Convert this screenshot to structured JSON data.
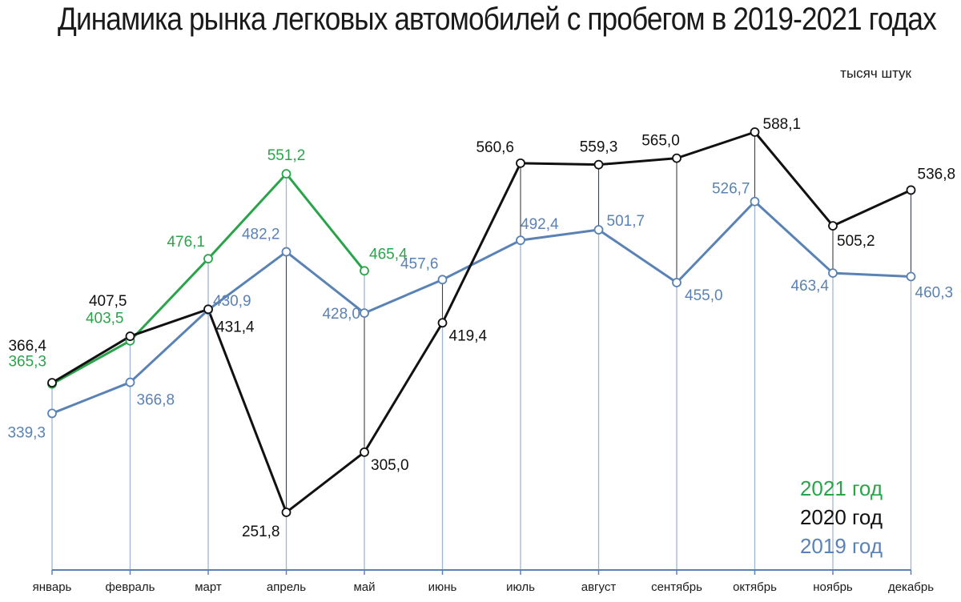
{
  "chart_data": {
    "type": "line",
    "title": "Динамика рынка легковых автомобилей с пробегом в 2019-2021 годах",
    "unit": "тысяч штук",
    "categories": [
      "январь",
      "февраль",
      "март",
      "апрель",
      "май",
      "июнь",
      "июль",
      "август",
      "сентябрь",
      "октябрь",
      "ноябрь",
      "декабрь"
    ],
    "series": [
      {
        "name": "2021 год",
        "color": "#2aa44a",
        "values": [
          365.3,
          403.5,
          476.1,
          551.2,
          465.4,
          null,
          null,
          null,
          null,
          null,
          null,
          null
        ],
        "labels": [
          "365,3",
          "403,5",
          "476,1",
          "551,2",
          "465,4",
          null,
          null,
          null,
          null,
          null,
          null,
          null
        ]
      },
      {
        "name": "2020 год",
        "color": "#111111",
        "values": [
          366.4,
          407.5,
          431.4,
          251.8,
          305.0,
          419.4,
          560.6,
          559.3,
          565.0,
          588.1,
          505.2,
          536.8
        ],
        "labels": [
          "366,4",
          "407,5",
          "431,4",
          "251,8",
          "305,0",
          "419,4",
          "560,6",
          "559,3",
          "565,0",
          "588,1",
          "505,2",
          "536,8"
        ]
      },
      {
        "name": "2019 год",
        "color": "#5a82b5",
        "values": [
          339.3,
          366.8,
          430.9,
          482.2,
          428.0,
          457.6,
          492.4,
          501.7,
          455.0,
          526.7,
          463.4,
          460.3
        ],
        "labels": [
          "339,3",
          "366,8",
          "430,9",
          "482,2",
          "428,0",
          "457,6",
          "492,4",
          "501,7",
          "455,0",
          "526,7",
          "463,4",
          "460,3"
        ]
      }
    ],
    "grid": false,
    "legend_position": "bottom-right"
  }
}
